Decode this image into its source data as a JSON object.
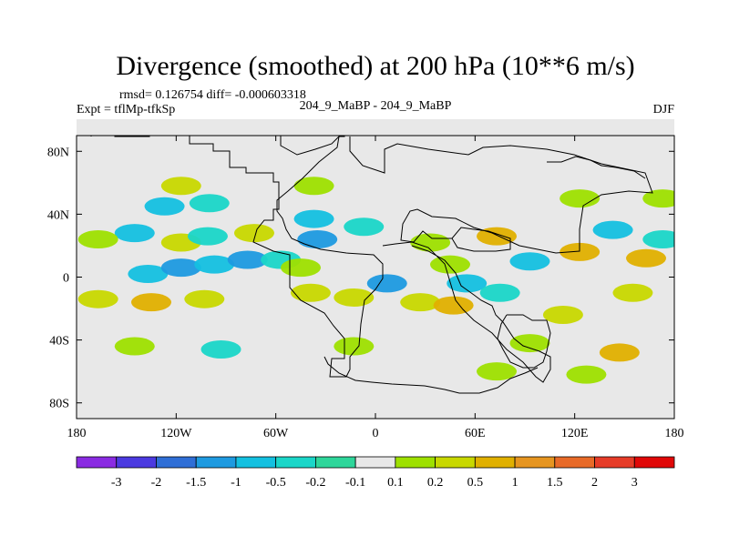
{
  "chart_data": {
    "type": "contour-map",
    "title": "Divergence (smoothed) at 200 hPa (10**6 m/s)",
    "stats": "rmsd= 0.126754  diff= -0.000603318",
    "experiment": "Expt = tflMp-tfkSp",
    "case": "204_9_MaBP - 204_9_MaBP",
    "season": "DJF",
    "projection": "cylindrical-equidistant",
    "xlim": [
      -180,
      180
    ],
    "ylim": [
      -90,
      90
    ],
    "x_ticks": [
      {
        "lon": -180,
        "label": "180"
      },
      {
        "lon": -120,
        "label": "120W"
      },
      {
        "lon": -60,
        "label": "60W"
      },
      {
        "lon": 0,
        "label": "0"
      },
      {
        "lon": 60,
        "label": "60E"
      },
      {
        "lon": 120,
        "label": "120E"
      },
      {
        "lon": 180,
        "label": "180"
      }
    ],
    "y_ticks": [
      {
        "lat": 80,
        "label": "80N"
      },
      {
        "lat": 40,
        "label": "40N"
      },
      {
        "lat": 0,
        "label": "0"
      },
      {
        "lat": -40,
        "label": "40S"
      },
      {
        "lat": -80,
        "label": "80S"
      }
    ],
    "colorbar": {
      "labels": [
        "-3",
        "-2",
        "-1.5",
        "-1",
        "-0.5",
        "-0.2",
        "-0.1",
        "0.1",
        "0.2",
        "0.5",
        "1",
        "1.5",
        "2",
        "3"
      ],
      "colors": [
        "#8a2be2",
        "#4b3ae0",
        "#2f6ed6",
        "#1e9ae0",
        "#14c0e0",
        "#1ad6c8",
        "#2ed69a",
        "#e8e8e8",
        "#9ee000",
        "#c8d800",
        "#e0b000",
        "#e69520",
        "#e86a28",
        "#e63c28",
        "#e00808"
      ],
      "neutral_color": "#e8e8e8"
    },
    "anomaly_cells": [
      {
        "lon": -157,
        "lat": 2,
        "level": 7
      },
      {
        "lon": -137,
        "lat": 2,
        "level": 4
      },
      {
        "lon": -117,
        "lat": 6,
        "level": 3
      },
      {
        "lon": -97,
        "lat": 8,
        "level": 4
      },
      {
        "lon": -77,
        "lat": 11,
        "level": 3
      },
      {
        "lon": -57,
        "lat": 11,
        "level": 5
      },
      {
        "lon": -167,
        "lat": -14,
        "level": 9
      },
      {
        "lon": -135,
        "lat": -16,
        "level": 10
      },
      {
        "lon": -103,
        "lat": -14,
        "level": 9
      },
      {
        "lon": -145,
        "lat": 28,
        "level": 4
      },
      {
        "lon": -117,
        "lat": 22,
        "level": 9
      },
      {
        "lon": -101,
        "lat": 26,
        "level": 5
      },
      {
        "lon": -73,
        "lat": 28,
        "level": 9
      },
      {
        "lon": -127,
        "lat": 45,
        "level": 4
      },
      {
        "lon": -100,
        "lat": 47,
        "level": 5
      },
      {
        "lon": -37,
        "lat": 37,
        "level": 4
      },
      {
        "lon": -35,
        "lat": 24,
        "level": 3
      },
      {
        "lon": -7,
        "lat": 32,
        "level": 5
      },
      {
        "lon": -45,
        "lat": 6,
        "level": 8
      },
      {
        "lon": -39,
        "lat": -10,
        "level": 9
      },
      {
        "lon": -13,
        "lat": -13,
        "level": 9
      },
      {
        "lon": 7,
        "lat": -4,
        "level": 3
      },
      {
        "lon": 33,
        "lat": 22,
        "level": 8
      },
      {
        "lon": 45,
        "lat": 8,
        "level": 8
      },
      {
        "lon": 55,
        "lat": -4,
        "level": 4
      },
      {
        "lon": 27,
        "lat": -16,
        "level": 9
      },
      {
        "lon": 47,
        "lat": -18,
        "level": 10
      },
      {
        "lon": 73,
        "lat": 26,
        "level": 10
      },
      {
        "lon": 93,
        "lat": 10,
        "level": 4
      },
      {
        "lon": 123,
        "lat": 16,
        "level": 10
      },
      {
        "lon": 143,
        "lat": 30,
        "level": 4
      },
      {
        "lon": 163,
        "lat": 12,
        "level": 10
      },
      {
        "lon": 173,
        "lat": 24,
        "level": 5
      },
      {
        "lon": 155,
        "lat": -10,
        "level": 9
      },
      {
        "lon": 113,
        "lat": -24,
        "level": 9
      },
      {
        "lon": 75,
        "lat": -10,
        "level": 5
      },
      {
        "lon": -93,
        "lat": -46,
        "level": 5
      },
      {
        "lon": -145,
        "lat": -44,
        "level": 8
      },
      {
        "lon": -13,
        "lat": -44,
        "level": 8
      },
      {
        "lon": 147,
        "lat": -48,
        "level": 10
      },
      {
        "lon": 93,
        "lat": -42,
        "level": 8
      },
      {
        "lon": 73,
        "lat": -60,
        "level": 8
      },
      {
        "lon": 127,
        "lat": -62,
        "level": 8
      },
      {
        "lon": -117,
        "lat": 58,
        "level": 9
      },
      {
        "lon": -37,
        "lat": 58,
        "level": 8
      },
      {
        "lon": 173,
        "lat": 50,
        "level": 8
      },
      {
        "lon": 123,
        "lat": 50,
        "level": 8
      },
      {
        "lon": -167,
        "lat": 24,
        "level": 8
      }
    ]
  }
}
